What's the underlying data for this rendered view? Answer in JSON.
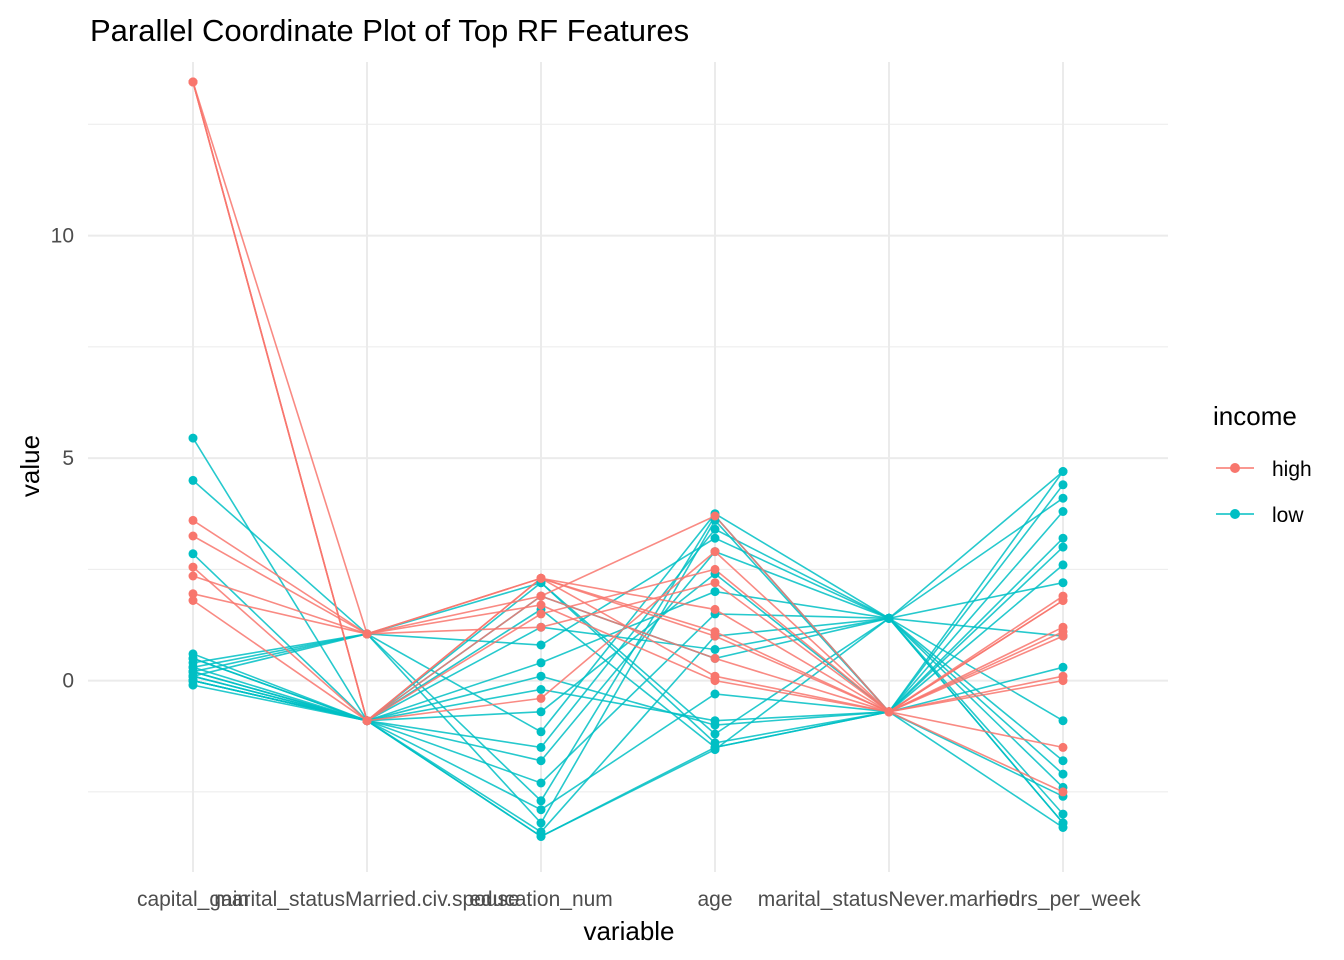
{
  "chart_data": {
    "type": "line",
    "title": "Parallel Coordinate Plot of Top RF Features",
    "xlabel": "variable",
    "ylabel": "value",
    "categories": [
      "capital_gain",
      "marital_statusMarried.civ.spouse",
      "education_num",
      "age",
      "marital_statusNever.married",
      "hours_per_week"
    ],
    "yticks": [
      0,
      5,
      10
    ],
    "ylim": [
      -4.3,
      13.9
    ],
    "grid": true,
    "legend": {
      "title": "income",
      "position": "right",
      "entries": [
        {
          "label": "high",
          "color": "#F8766D"
        },
        {
          "label": "low",
          "color": "#00BFC4"
        }
      ]
    },
    "series": [
      {
        "name": "low",
        "color": "#00BFC4",
        "lines": [
          [
            0.2,
            1.05,
            -1.15,
            3.75,
            1.4,
            -2.1
          ],
          [
            -0.1,
            -0.9,
            -3.5,
            -1.5,
            -0.7,
            4.7
          ],
          [
            5.45,
            -0.9,
            1.2,
            0.7,
            1.4,
            -3.2
          ],
          [
            4.5,
            1.05,
            -3.2,
            3.6,
            -0.7,
            3.2
          ],
          [
            2.85,
            -0.9,
            -3.5,
            -1.55,
            1.4,
            4.7
          ],
          [
            0.0,
            -0.9,
            2.2,
            -1.2,
            1.4,
            -3.2
          ],
          [
            0.1,
            1.05,
            -2.7,
            3.7,
            -0.7,
            -3.3
          ],
          [
            0.3,
            -0.9,
            0.4,
            2.0,
            1.4,
            4.1
          ],
          [
            0.5,
            -0.9,
            -2.3,
            1.5,
            1.4,
            -3.0
          ],
          [
            0.2,
            -0.9,
            1.6,
            -1.5,
            -0.7,
            3.8
          ],
          [
            0.0,
            -0.9,
            -1.8,
            2.9,
            1.4,
            2.2
          ],
          [
            0.1,
            -0.9,
            -0.2,
            -0.9,
            -0.7,
            -2.6
          ],
          [
            0.4,
            1.05,
            0.8,
            3.2,
            1.4,
            1.0
          ],
          [
            0.0,
            -0.9,
            -2.9,
            -0.3,
            -0.7,
            4.4
          ],
          [
            0.6,
            -0.9,
            1.9,
            0.5,
            1.4,
            -1.8
          ],
          [
            0.2,
            -0.9,
            -0.7,
            2.4,
            -0.7,
            0.3
          ],
          [
            0.1,
            -0.9,
            -3.4,
            1.0,
            1.4,
            -0.9
          ],
          [
            0.3,
            1.05,
            2.2,
            -1.4,
            -0.7,
            3.0
          ],
          [
            0.0,
            -0.9,
            -1.5,
            3.4,
            1.4,
            -2.4
          ],
          [
            0.5,
            -0.9,
            0.1,
            -1.0,
            -0.7,
            2.6
          ]
        ]
      },
      {
        "name": "high",
        "color": "#F8766D",
        "lines": [
          [
            13.45,
            -0.9,
            1.9,
            3.7,
            -0.7,
            1.8
          ],
          [
            13.45,
            -0.9,
            2.3,
            1.0,
            -0.7,
            0.1
          ],
          [
            13.45,
            -0.9,
            1.5,
            2.5,
            -0.7,
            -1.5
          ],
          [
            13.45,
            1.05,
            1.7,
            0.0,
            -0.7,
            1.1
          ],
          [
            3.6,
            1.05,
            2.3,
            1.1,
            -0.7,
            1.8
          ],
          [
            3.25,
            1.05,
            1.9,
            0.5,
            -0.7,
            -2.5
          ],
          [
            2.55,
            -0.9,
            -0.4,
            2.9,
            -0.7,
            1.2
          ],
          [
            2.35,
            1.05,
            2.3,
            0.1,
            -0.7,
            1.0
          ],
          [
            1.95,
            1.05,
            1.2,
            2.2,
            -0.7,
            0.0
          ],
          [
            1.8,
            -0.9,
            2.3,
            1.6,
            -0.7,
            1.9
          ]
        ]
      }
    ]
  }
}
